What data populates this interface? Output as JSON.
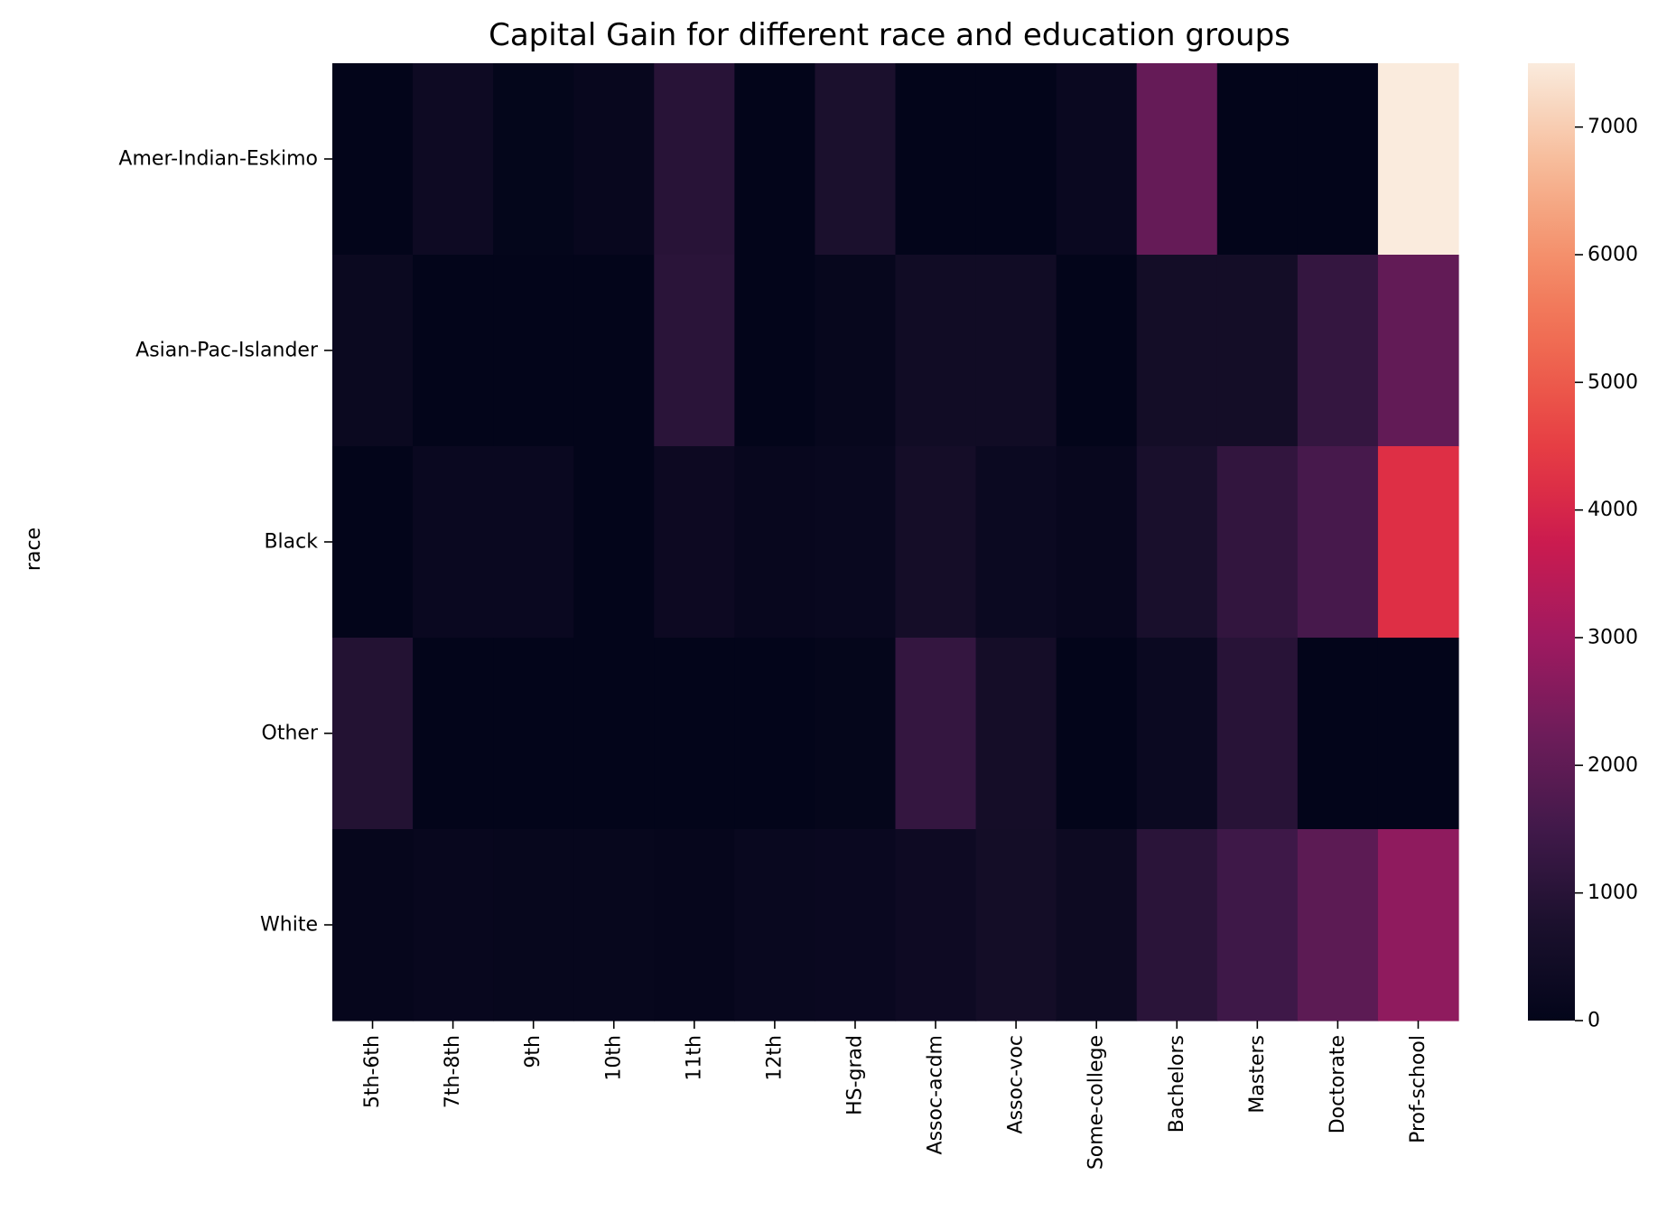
{
  "chart_data": {
    "type": "heatmap",
    "title": "Capital Gain for different race and education groups",
    "xlabel": "",
    "ylabel": "race",
    "x_categories": [
      "5th-6th",
      "7th-8th",
      "9th",
      "10th",
      "11th",
      "12th",
      "HS-grad",
      "Assoc-acdm",
      "Assoc-voc",
      "Some-college",
      "Bachelors",
      "Masters",
      "Doctorate",
      "Prof-school"
    ],
    "y_categories": [
      "Amer-Indian-Eskimo",
      "Asian-Pac-Islander",
      "Black",
      "Other",
      "White"
    ],
    "values": [
      [
        0,
        340,
        40,
        150,
        1000,
        0,
        750,
        0,
        0,
        220,
        2100,
        0,
        0,
        7500
      ],
      [
        250,
        0,
        0,
        0,
        1050,
        0,
        130,
        450,
        450,
        0,
        520,
        520,
        1250,
        2050
      ],
      [
        0,
        220,
        220,
        0,
        300,
        150,
        200,
        560,
        260,
        170,
        700,
        1200,
        1600,
        4200
      ],
      [
        900,
        0,
        0,
        0,
        0,
        0,
        50,
        1250,
        560,
        0,
        260,
        1000,
        0,
        0
      ],
      [
        80,
        160,
        120,
        120,
        80,
        200,
        230,
        340,
        520,
        320,
        1050,
        1450,
        1950,
        2750
      ]
    ],
    "colorbar": {
      "min": 0,
      "max": 7500,
      "ticks": [
        0,
        1000,
        2000,
        3000,
        4000,
        5000,
        6000,
        7000
      ],
      "colormap": "rocket"
    }
  }
}
